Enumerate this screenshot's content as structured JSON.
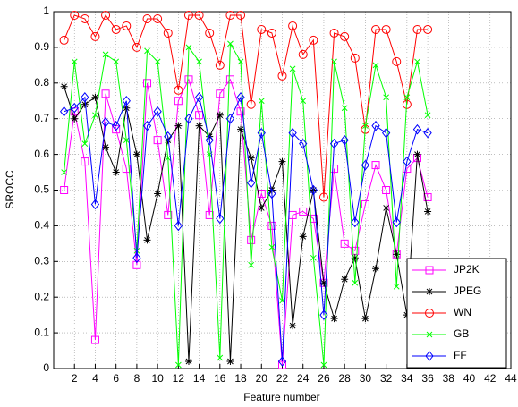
{
  "chart_data": {
    "type": "line",
    "xlabel": "Feature number",
    "ylabel": "SROCC",
    "x": [
      1,
      2,
      3,
      4,
      5,
      6,
      7,
      8,
      9,
      10,
      11,
      12,
      13,
      14,
      15,
      16,
      17,
      18,
      19,
      20,
      21,
      22,
      23,
      24,
      25,
      26,
      27,
      28,
      29,
      30,
      31,
      32,
      33,
      34,
      35,
      36
    ],
    "series": [
      {
        "name": "JP2K",
        "color": "#ff00ff",
        "marker": "square",
        "values": [
          0.5,
          0.72,
          0.58,
          0.08,
          0.77,
          0.67,
          0.56,
          0.29,
          0.8,
          0.64,
          0.43,
          0.75,
          0.81,
          0.71,
          0.43,
          0.77,
          0.81,
          0.72,
          0.36,
          0.49,
          0.4,
          0.01,
          0.43,
          0.44,
          0.42,
          0.24,
          0.56,
          0.35,
          0.33,
          0.46,
          0.57,
          0.5,
          0.32,
          0.56,
          0.59,
          0.48
        ]
      },
      {
        "name": "JPEG",
        "color": "#000000",
        "marker": "star",
        "values": [
          0.79,
          0.7,
          0.74,
          0.76,
          0.62,
          0.55,
          0.73,
          0.6,
          0.36,
          0.49,
          0.64,
          0.68,
          0.02,
          0.68,
          0.65,
          0.71,
          0.02,
          0.67,
          0.59,
          0.45,
          0.5,
          0.58,
          0.12,
          0.37,
          0.5,
          0.24,
          0.14,
          0.25,
          0.31,
          0.14,
          0.28,
          0.45,
          0.32,
          0.15,
          0.6,
          0.44
        ]
      },
      {
        "name": "WN",
        "color": "#ff0000",
        "marker": "circle",
        "values": [
          0.92,
          0.99,
          0.98,
          0.93,
          0.99,
          0.95,
          0.96,
          0.9,
          0.98,
          0.98,
          0.94,
          0.78,
          0.99,
          0.99,
          0.94,
          0.85,
          0.99,
          0.99,
          0.74,
          0.95,
          0.94,
          0.82,
          0.96,
          0.88,
          0.92,
          0.48,
          0.94,
          0.93,
          0.87,
          0.67,
          0.95,
          0.95,
          0.86,
          0.74,
          0.95,
          0.95
        ]
      },
      {
        "name": "GB",
        "color": "#00ff00",
        "marker": "x",
        "values": [
          0.55,
          0.86,
          0.63,
          0.71,
          0.88,
          0.86,
          0.64,
          0.33,
          0.89,
          0.86,
          0.59,
          0.01,
          0.9,
          0.86,
          0.6,
          0.03,
          0.91,
          0.86,
          0.29,
          0.75,
          0.34,
          0.19,
          0.84,
          0.75,
          0.31,
          0.01,
          0.86,
          0.73,
          0.24,
          0.68,
          0.85,
          0.76,
          0.23,
          0.76,
          0.86,
          0.71
        ]
      },
      {
        "name": "FF",
        "color": "#0000ff",
        "marker": "diamond",
        "values": [
          0.72,
          0.73,
          0.76,
          0.46,
          0.69,
          0.68,
          0.75,
          0.31,
          0.68,
          0.72,
          0.65,
          0.4,
          0.7,
          0.76,
          0.64,
          0.42,
          0.7,
          0.76,
          0.52,
          0.66,
          0.49,
          0.02,
          0.66,
          0.63,
          0.5,
          0.15,
          0.63,
          0.64,
          0.41,
          0.57,
          0.68,
          0.66,
          0.41,
          0.58,
          0.67,
          0.66
        ]
      }
    ],
    "xlim": [
      0,
      44
    ],
    "xticks": [
      2,
      4,
      6,
      8,
      10,
      12,
      14,
      16,
      18,
      20,
      22,
      24,
      26,
      28,
      30,
      32,
      34,
      36,
      38,
      40,
      42,
      44
    ],
    "ylim": [
      0,
      1
    ],
    "yticks": [
      0,
      0.1,
      0.2,
      0.3,
      0.4,
      0.5,
      0.6,
      0.7,
      0.8,
      0.9,
      1
    ],
    "grid": true,
    "legend": "lower right"
  }
}
